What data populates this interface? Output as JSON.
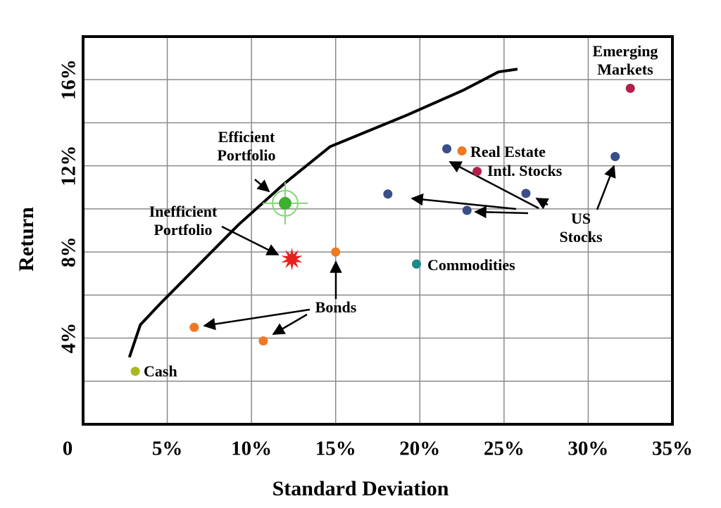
{
  "chart_data": {
    "type": "scatter",
    "x_label": "Standard Deviation",
    "y_label": "Return",
    "xlim": [
      0,
      35
    ],
    "ylim": [
      0,
      18
    ],
    "xticks": [
      0,
      {
        "value": 5,
        "label": "5%"
      },
      {
        "value": 10,
        "label": "10%"
      },
      {
        "value": 15,
        "label": "15%"
      },
      {
        "value": 20,
        "label": "20%"
      },
      {
        "value": 25,
        "label": "25%"
      },
      {
        "value": 30,
        "label": "30%"
      },
      {
        "value": 35,
        "label": "35%"
      }
    ],
    "yticks": [
      {
        "value": 4,
        "label": "4%"
      },
      {
        "value": 8,
        "label": "8%"
      },
      {
        "value": 12,
        "label": "12%"
      },
      {
        "value": 16,
        "label": "16%"
      }
    ],
    "y_minor_gridlines": [
      2,
      6,
      10,
      14
    ],
    "grid": true,
    "frontier": {
      "color": "#000000",
      "x": [
        2.75,
        3.4,
        4.67,
        6.75,
        9.25,
        11.96,
        14.67,
        19.25,
        22.58,
        24.67,
        25.8
      ],
      "y": [
        3.11,
        4.62,
        5.67,
        7.31,
        9.28,
        11.18,
        12.89,
        14.36,
        15.51,
        16.36,
        16.49
      ]
    },
    "series": [
      {
        "name": "Cash",
        "color": "#a8b820",
        "marker": "circle",
        "x": [
          3.1
        ],
        "y": [
          2.46
        ]
      },
      {
        "name": "Bonds",
        "color": "#f07820",
        "marker": "circle",
        "x": [
          6.6,
          10.7,
          15.0
        ],
        "y": [
          4.5,
          3.87,
          8.0
        ]
      },
      {
        "name": "Commodities",
        "color": "#1a8a8a",
        "marker": "circle",
        "x": [
          19.8
        ],
        "y": [
          7.44
        ]
      },
      {
        "name": "US Stocks",
        "color": "#3a4e8a",
        "marker": "circle",
        "x": [
          18.1,
          21.6,
          22.8,
          26.3,
          31.6
        ],
        "y": [
          10.69,
          12.79,
          9.93,
          10.72,
          12.43
        ]
      },
      {
        "name": "Real Estate",
        "color": "#f07820",
        "marker": "circle",
        "x": [
          22.5
        ],
        "y": [
          12.69
        ]
      },
      {
        "name": "Intl. Stocks",
        "color": "#b0204a",
        "marker": "circle",
        "x": [
          23.4
        ],
        "y": [
          11.74
        ]
      },
      {
        "name": "Emerging Markets",
        "color": "#b0204a",
        "marker": "circle",
        "x": [
          32.5
        ],
        "y": [
          15.6
        ]
      },
      {
        "name": "Efficient Portfolio",
        "color": "#3cb030",
        "marker": "target",
        "x": [
          12.0
        ],
        "y": [
          10.26
        ]
      },
      {
        "name": "Inefficient Portfolio",
        "color": "#e82020",
        "marker": "star",
        "x": [
          12.4
        ],
        "y": [
          7.67
        ]
      }
    ]
  }
}
